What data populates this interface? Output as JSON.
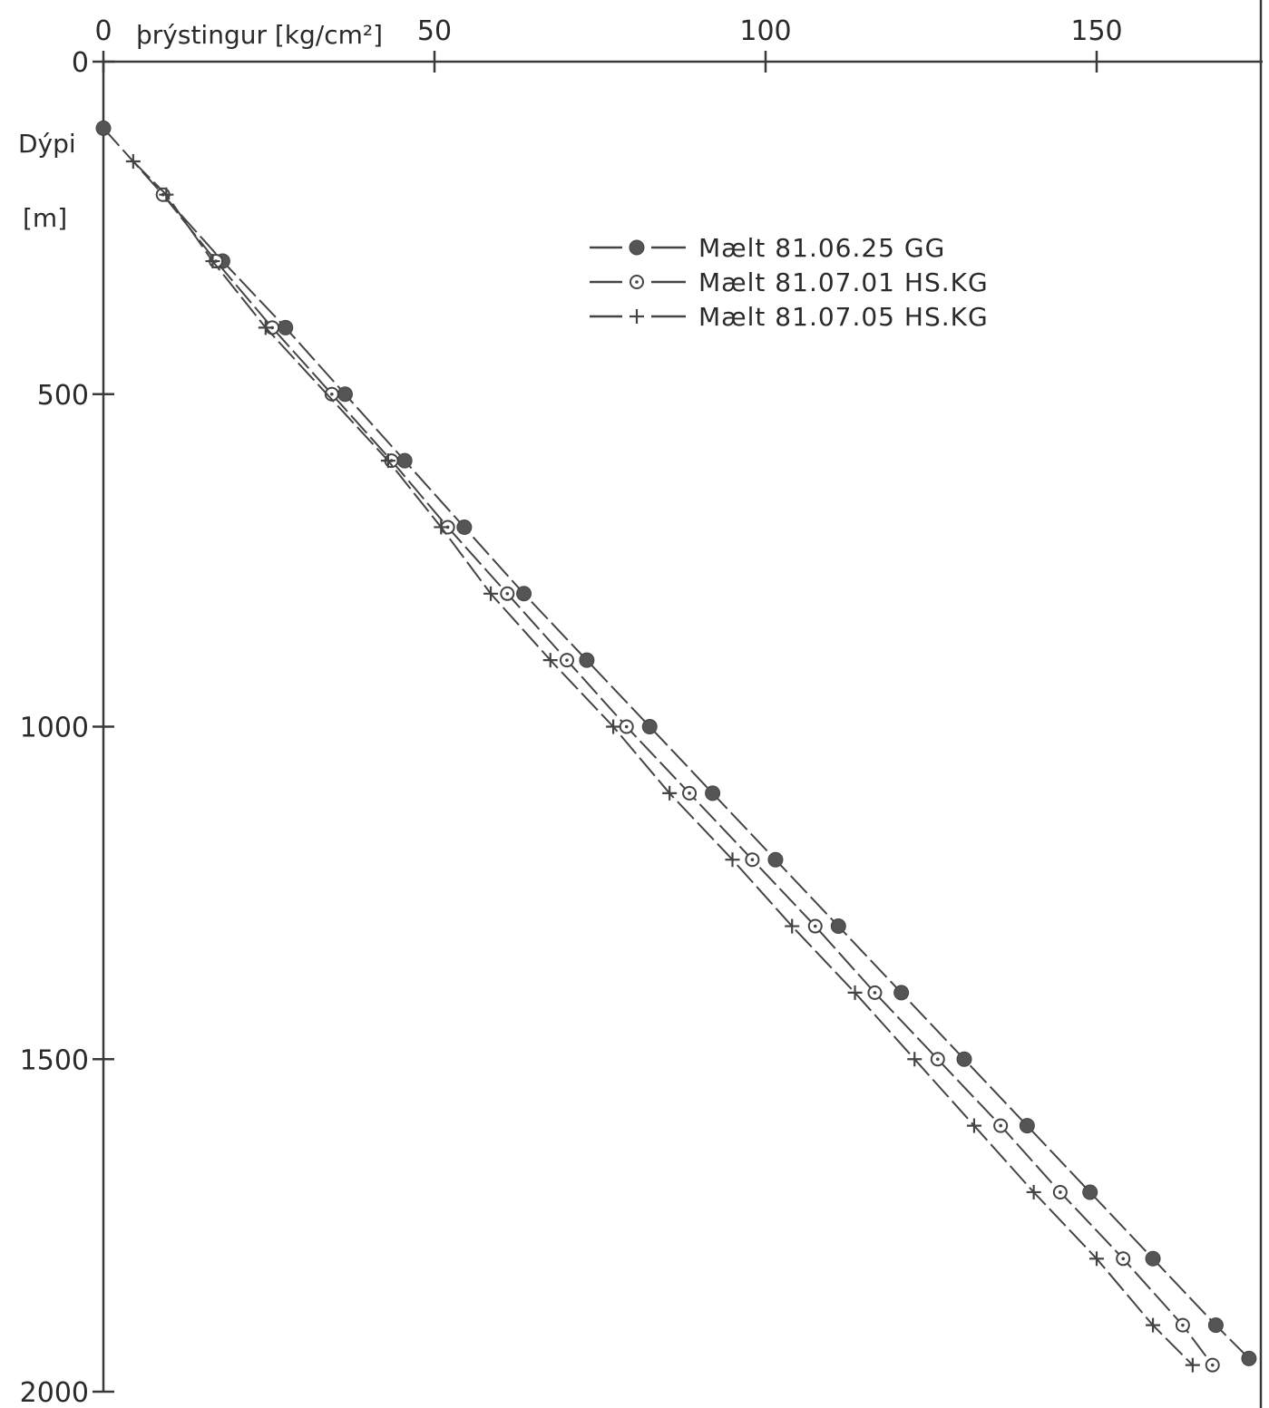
{
  "chart_data": {
    "type": "line",
    "xlabel": "þrýstingur [kg/cm²]",
    "ylabel_line1": "Dýpi",
    "ylabel_line2": "[m]",
    "xlim": [
      0,
      172
    ],
    "ylim": [
      0,
      2000
    ],
    "y_inverted": true,
    "x_axis_position": "top",
    "x_ticks": [
      0,
      50,
      100,
      150
    ],
    "x_tick_labels": [
      "0",
      "50",
      "100",
      "150"
    ],
    "y_ticks": [
      0,
      500,
      1000,
      1500,
      2000
    ],
    "y_tick_labels": [
      "0",
      "500",
      "1000",
      "1500",
      "2000"
    ],
    "grid": false,
    "legend_position": "top-right",
    "series": [
      {
        "name": "Mælt 81.06.25 GG",
        "marker": "filled-circle",
        "points": [
          [
            0,
            100
          ],
          [
            18,
            300
          ],
          [
            27.5,
            400
          ],
          [
            36.5,
            500
          ],
          [
            45.5,
            600
          ],
          [
            54.5,
            700
          ],
          [
            63.5,
            800
          ],
          [
            73,
            900
          ],
          [
            82.5,
            1000
          ],
          [
            92,
            1100
          ],
          [
            101.5,
            1200
          ],
          [
            111,
            1300
          ],
          [
            120.5,
            1400
          ],
          [
            130,
            1500
          ],
          [
            139.5,
            1600
          ],
          [
            149,
            1700
          ],
          [
            158.5,
            1800
          ],
          [
            168,
            1900
          ],
          [
            173,
            1950
          ]
        ]
      },
      {
        "name": "Mælt 81.07.01 HS.KG",
        "marker": "circle-dot",
        "points": [
          [
            9,
            200
          ],
          [
            17,
            300
          ],
          [
            25.5,
            400
          ],
          [
            34.5,
            500
          ],
          [
            43.5,
            600
          ],
          [
            52,
            700
          ],
          [
            61,
            800
          ],
          [
            70,
            900
          ],
          [
            79,
            1000
          ],
          [
            88.5,
            1100
          ],
          [
            98,
            1200
          ],
          [
            107.5,
            1300
          ],
          [
            116.5,
            1400
          ],
          [
            126,
            1500
          ],
          [
            135.5,
            1600
          ],
          [
            144.5,
            1700
          ],
          [
            154,
            1800
          ],
          [
            163,
            1900
          ],
          [
            167.5,
            1960
          ]
        ]
      },
      {
        "name": "Mælt 81.07.05 HS.KG",
        "marker": "plus",
        "points": [
          [
            4.5,
            150
          ],
          [
            9.5,
            200
          ],
          [
            16.5,
            300
          ],
          [
            24.5,
            400
          ],
          [
            43,
            600
          ],
          [
            51,
            700
          ],
          [
            58.5,
            800
          ],
          [
            67.5,
            900
          ],
          [
            77,
            1000
          ],
          [
            85.5,
            1100
          ],
          [
            95,
            1200
          ],
          [
            104,
            1300
          ],
          [
            113.5,
            1400
          ],
          [
            122.5,
            1500
          ],
          [
            131.5,
            1600
          ],
          [
            140.5,
            1700
          ],
          [
            150,
            1800
          ],
          [
            158.5,
            1900
          ],
          [
            164.5,
            1960
          ]
        ]
      }
    ]
  }
}
